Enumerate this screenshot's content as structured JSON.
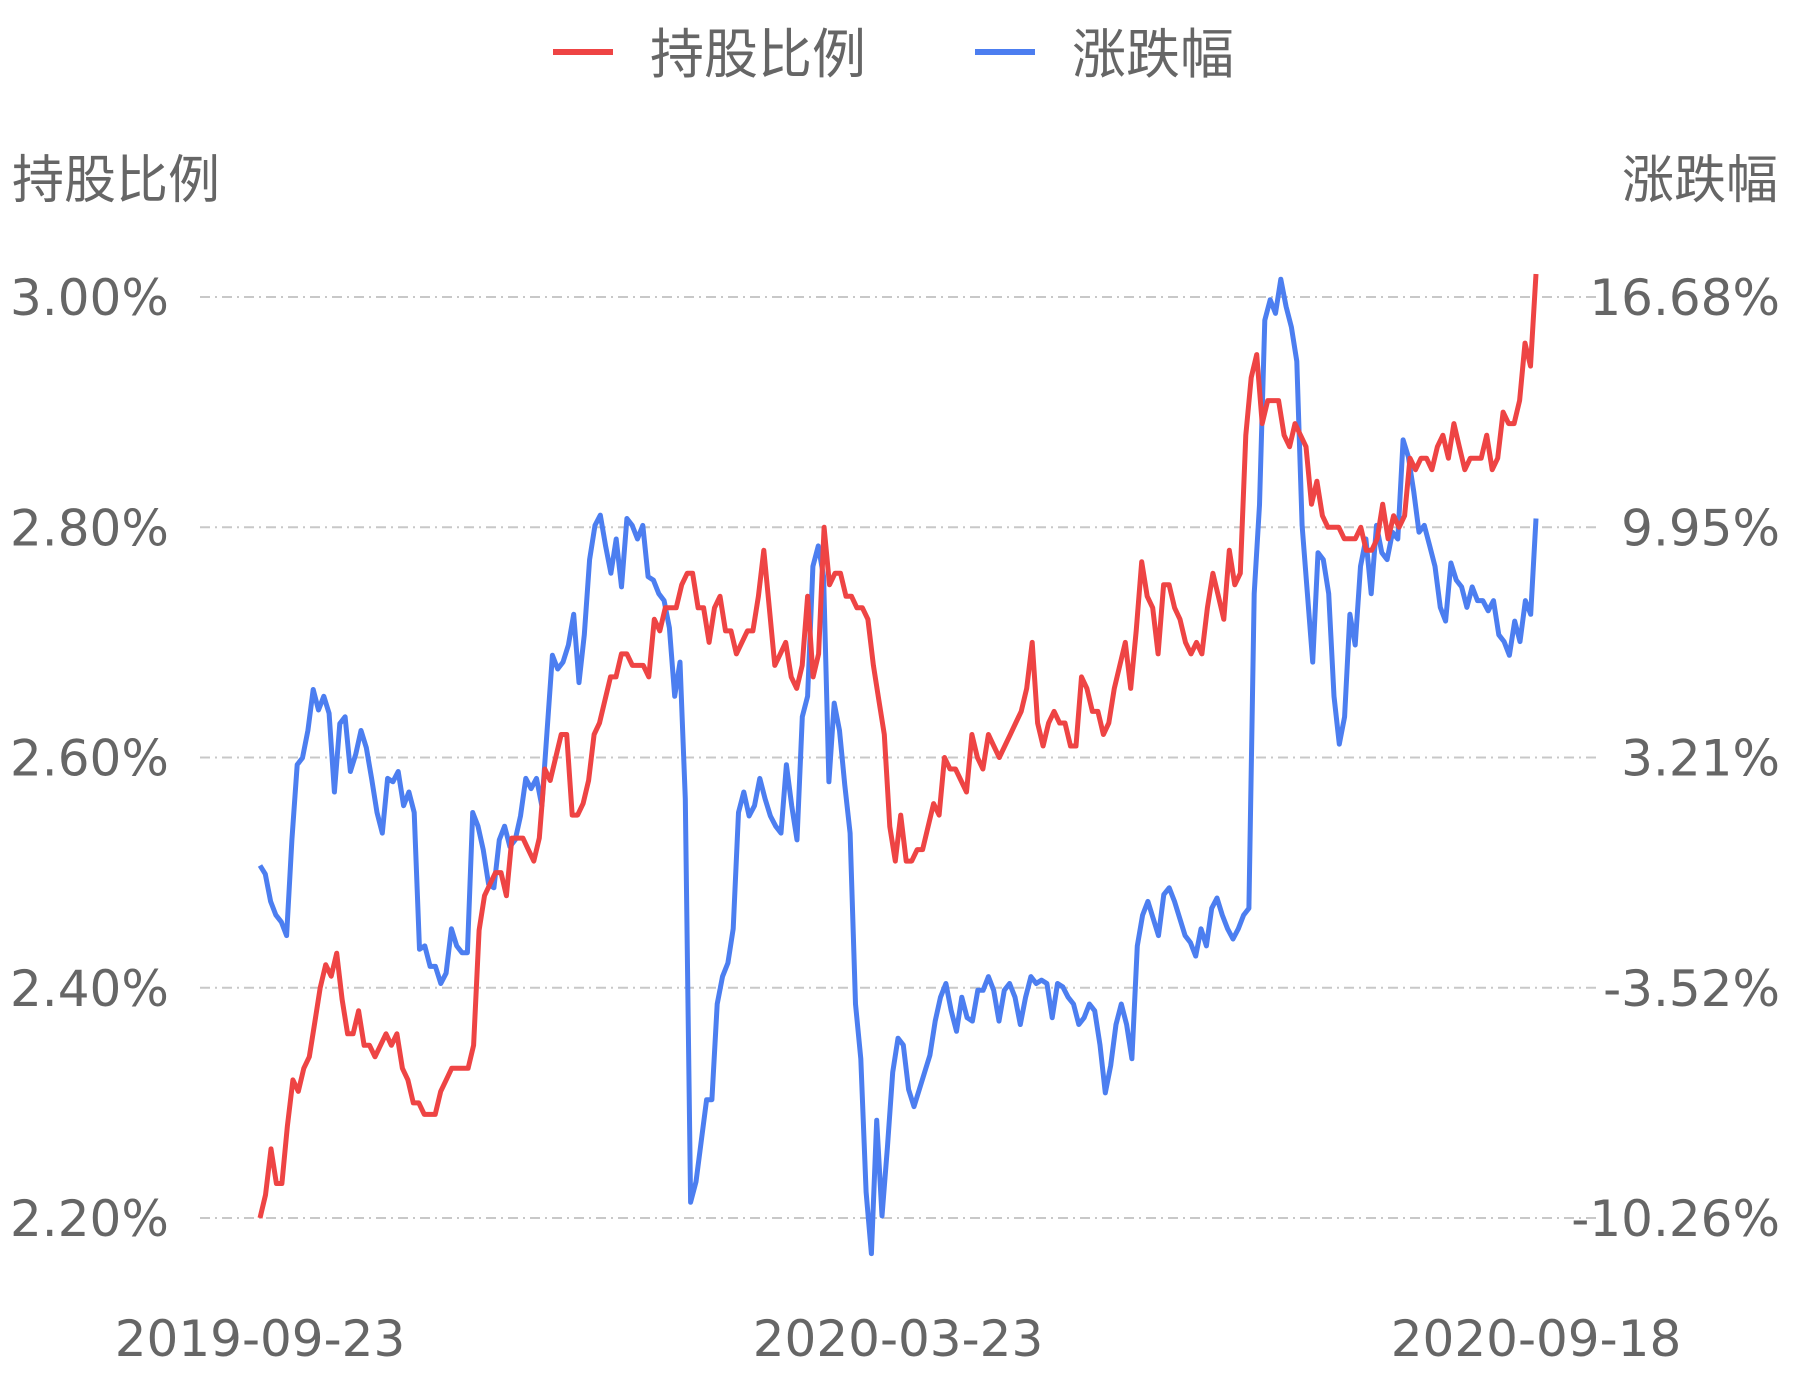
{
  "chart_data": {
    "type": "line",
    "legend": {
      "placement": "top-center"
    },
    "grid": true,
    "left_axis": {
      "label": "持股比例",
      "ticks": [
        "3.00%",
        "2.80%",
        "2.60%",
        "2.40%",
        "2.20%"
      ],
      "range": [
        2.2,
        3.0
      ]
    },
    "right_axis": {
      "label": "涨跌幅",
      "ticks": [
        "16.68%",
        "9.95%",
        "3.21%",
        "-3.52%",
        "-10.26%"
      ],
      "range": [
        -10.26,
        16.68
      ]
    },
    "x_ticks": [
      "2019-09-23",
      "2020-03-23",
      "2020-09-18"
    ],
    "series": [
      {
        "name": "持股比例",
        "axis": "left",
        "color": "#ee4444",
        "values": [
          2.2,
          2.22,
          2.26,
          2.23,
          2.23,
          2.28,
          2.32,
          2.31,
          2.33,
          2.34,
          2.37,
          2.4,
          2.42,
          2.41,
          2.43,
          2.39,
          2.36,
          2.36,
          2.38,
          2.35,
          2.35,
          2.34,
          2.35,
          2.36,
          2.35,
          2.36,
          2.33,
          2.32,
          2.3,
          2.3,
          2.29,
          2.29,
          2.29,
          2.31,
          2.32,
          2.33,
          2.33,
          2.33,
          2.33,
          2.35,
          2.45,
          2.48,
          2.49,
          2.5,
          2.5,
          2.48,
          2.53,
          2.53,
          2.53,
          2.52,
          2.51,
          2.53,
          2.59,
          2.58,
          2.6,
          2.62,
          2.62,
          2.55,
          2.55,
          2.56,
          2.58,
          2.62,
          2.63,
          2.65,
          2.67,
          2.67,
          2.69,
          2.69,
          2.68,
          2.68,
          2.68,
          2.67,
          2.72,
          2.71,
          2.73,
          2.73,
          2.73,
          2.75,
          2.76,
          2.76,
          2.73,
          2.73,
          2.7,
          2.73,
          2.74,
          2.71,
          2.71,
          2.69,
          2.7,
          2.71,
          2.71,
          2.74,
          2.78,
          2.73,
          2.68,
          2.69,
          2.7,
          2.67,
          2.66,
          2.68,
          2.74,
          2.67,
          2.69,
          2.8,
          2.75,
          2.76,
          2.76,
          2.74,
          2.74,
          2.73,
          2.73,
          2.72,
          2.68,
          2.65,
          2.62,
          2.54,
          2.51,
          2.55,
          2.51,
          2.51,
          2.52,
          2.52,
          2.54,
          2.56,
          2.55,
          2.6,
          2.59,
          2.59,
          2.58,
          2.57,
          2.62,
          2.6,
          2.59,
          2.62,
          2.61,
          2.6,
          2.61,
          2.62,
          2.63,
          2.64,
          2.66,
          2.7,
          2.63,
          2.61,
          2.63,
          2.64,
          2.63,
          2.63,
          2.61,
          2.61,
          2.67,
          2.66,
          2.64,
          2.64,
          2.62,
          2.63,
          2.66,
          2.68,
          2.7,
          2.66,
          2.71,
          2.77,
          2.74,
          2.73,
          2.69,
          2.75,
          2.75,
          2.73,
          2.72,
          2.7,
          2.69,
          2.7,
          2.69,
          2.73,
          2.76,
          2.74,
          2.72,
          2.78,
          2.75,
          2.76,
          2.88,
          2.93,
          2.95,
          2.89,
          2.91,
          2.91,
          2.91,
          2.88,
          2.87,
          2.89,
          2.88,
          2.87,
          2.82,
          2.84,
          2.81,
          2.8,
          2.8,
          2.8,
          2.79,
          2.79,
          2.79,
          2.8,
          2.78,
          2.78,
          2.79,
          2.82,
          2.79,
          2.81,
          2.8,
          2.81,
          2.86,
          2.85,
          2.86,
          2.86,
          2.85,
          2.87,
          2.88,
          2.86,
          2.89,
          2.87,
          2.85,
          2.86,
          2.86,
          2.86,
          2.88,
          2.85,
          2.86,
          2.9,
          2.89,
          2.89,
          2.91,
          2.96,
          2.94,
          3.02
        ]
      },
      {
        "name": "涨跌幅",
        "axis": "right",
        "color": "#4c7ef0",
        "values": [
          0.05,
          -0.2,
          -1.0,
          -1.4,
          -1.6,
          -2.0,
          0.8,
          3.0,
          3.2,
          4.0,
          5.2,
          4.6,
          5.0,
          4.5,
          2.2,
          4.2,
          4.4,
          2.8,
          3.3,
          4.0,
          3.5,
          2.6,
          1.6,
          1.0,
          2.6,
          2.5,
          2.8,
          1.8,
          2.2,
          1.6,
          -2.4,
          -2.3,
          -2.9,
          -2.9,
          -3.4,
          -3.1,
          -1.8,
          -2.3,
          -2.5,
          -2.5,
          1.6,
          1.2,
          0.5,
          -0.5,
          -0.6,
          0.8,
          1.2,
          0.6,
          0.8,
          1.5,
          2.6,
          2.3,
          2.6,
          1.8,
          4.0,
          6.2,
          5.8,
          6.0,
          6.5,
          7.4,
          5.4,
          6.8,
          9.0,
          10.0,
          10.3,
          9.4,
          8.6,
          9.6,
          8.2,
          10.2,
          10.0,
          9.6,
          10.0,
          8.5,
          8.4,
          8.0,
          7.8,
          7.0,
          5.0,
          6.0,
          2.0,
          -9.8,
          -9.2,
          -8.0,
          -6.8,
          -6.8,
          -4.0,
          -3.2,
          -2.8,
          -1.8,
          1.6,
          2.2,
          1.5,
          1.8,
          2.6,
          2.0,
          1.5,
          1.2,
          1.0,
          3.0,
          1.8,
          0.8,
          4.4,
          5.0,
          8.8,
          9.4,
          8.5,
          2.5,
          4.8,
          4.0,
          2.4,
          1.0,
          -4.0,
          -5.6,
          -9.5,
          -11.3,
          -7.4,
          -10.2,
          -8.2,
          -6.0,
          -5.0,
          -5.2,
          -6.5,
          -7.0,
          -6.5,
          -6.0,
          -5.5,
          -4.5,
          -3.8,
          -3.4,
          -4.2,
          -4.8,
          -3.8,
          -4.4,
          -4.5,
          -3.6,
          -3.6,
          -3.2,
          -3.6,
          -4.5,
          -3.6,
          -3.4,
          -3.8,
          -4.6,
          -3.8,
          -3.2,
          -3.4,
          -3.3,
          -3.4,
          -4.4,
          -3.4,
          -3.5,
          -3.8,
          -4.0,
          -4.6,
          -4.4,
          -4.0,
          -4.2,
          -5.2,
          -6.6,
          -5.8,
          -4.6,
          -4.0,
          -4.6,
          -5.6,
          -2.3,
          -1.4,
          -1.0,
          -1.5,
          -2.0,
          -0.8,
          -0.6,
          -1.0,
          -1.5,
          -2.0,
          -2.2,
          -2.6,
          -1.8,
          -2.3,
          -1.2,
          -0.9,
          -1.4,
          -1.8,
          -2.1,
          -1.8,
          -1.4,
          -1.2,
          8.0,
          10.6,
          16.0,
          16.6,
          16.2,
          17.2,
          16.4,
          15.8,
          14.8,
          10.0,
          8.0,
          6.0,
          9.2,
          9.0,
          8.0,
          5.0,
          3.6,
          4.4,
          7.4,
          6.5,
          8.8,
          9.6,
          8.0,
          10.0,
          9.2,
          9.0,
          9.8,
          9.6,
          12.5,
          12.0,
          11.0,
          9.8,
          10.0,
          9.4,
          8.8,
          7.6,
          7.2,
          8.9,
          8.4,
          8.2,
          7.6,
          8.2,
          7.8,
          7.8,
          7.5,
          7.8,
          6.8,
          6.6,
          6.2,
          7.2,
          6.6,
          7.8,
          7.4,
          10.2
        ]
      }
    ]
  }
}
